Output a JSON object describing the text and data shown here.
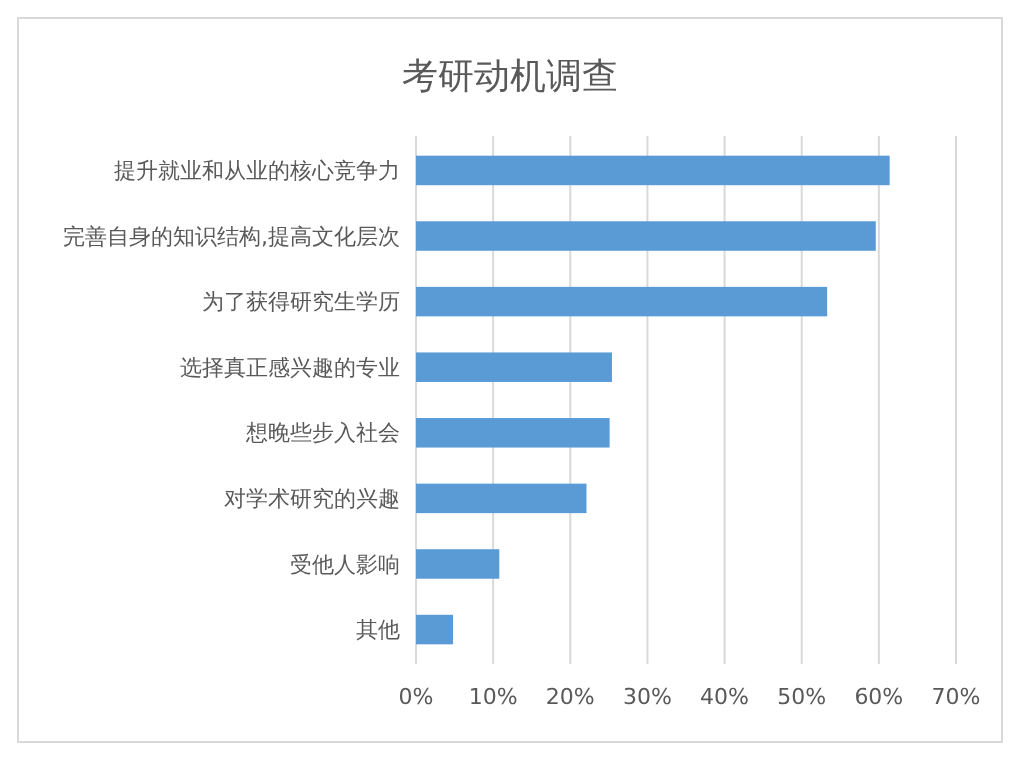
{
  "chart_data": {
    "type": "bar",
    "orientation": "horizontal",
    "title": "考研动机调查",
    "categories": [
      "提升就业和从业的核心竞争力",
      "完善自身的知识结构,提高文化层次",
      "为了获得研究生学历",
      "选择真正感兴趣的专业",
      "想晚些步入社会",
      "对学术研究的兴趣",
      "受他人影响",
      "其他"
    ],
    "values": [
      61.4,
      59.6,
      53.3,
      25.4,
      25.1,
      22.1,
      10.8,
      4.8
    ],
    "color": "#5b9bd5",
    "xlim": [
      0,
      70
    ],
    "xticks": [
      {
        "value": 0,
        "label": "0%"
      },
      {
        "value": 10,
        "label": "10%"
      },
      {
        "value": 20,
        "label": "20%"
      },
      {
        "value": 30,
        "label": "30%"
      },
      {
        "value": 40,
        "label": "40%"
      },
      {
        "value": 50,
        "label": "50%"
      },
      {
        "value": 60,
        "label": "60%"
      },
      {
        "value": 70,
        "label": "70%"
      }
    ],
    "grid": "x"
  }
}
